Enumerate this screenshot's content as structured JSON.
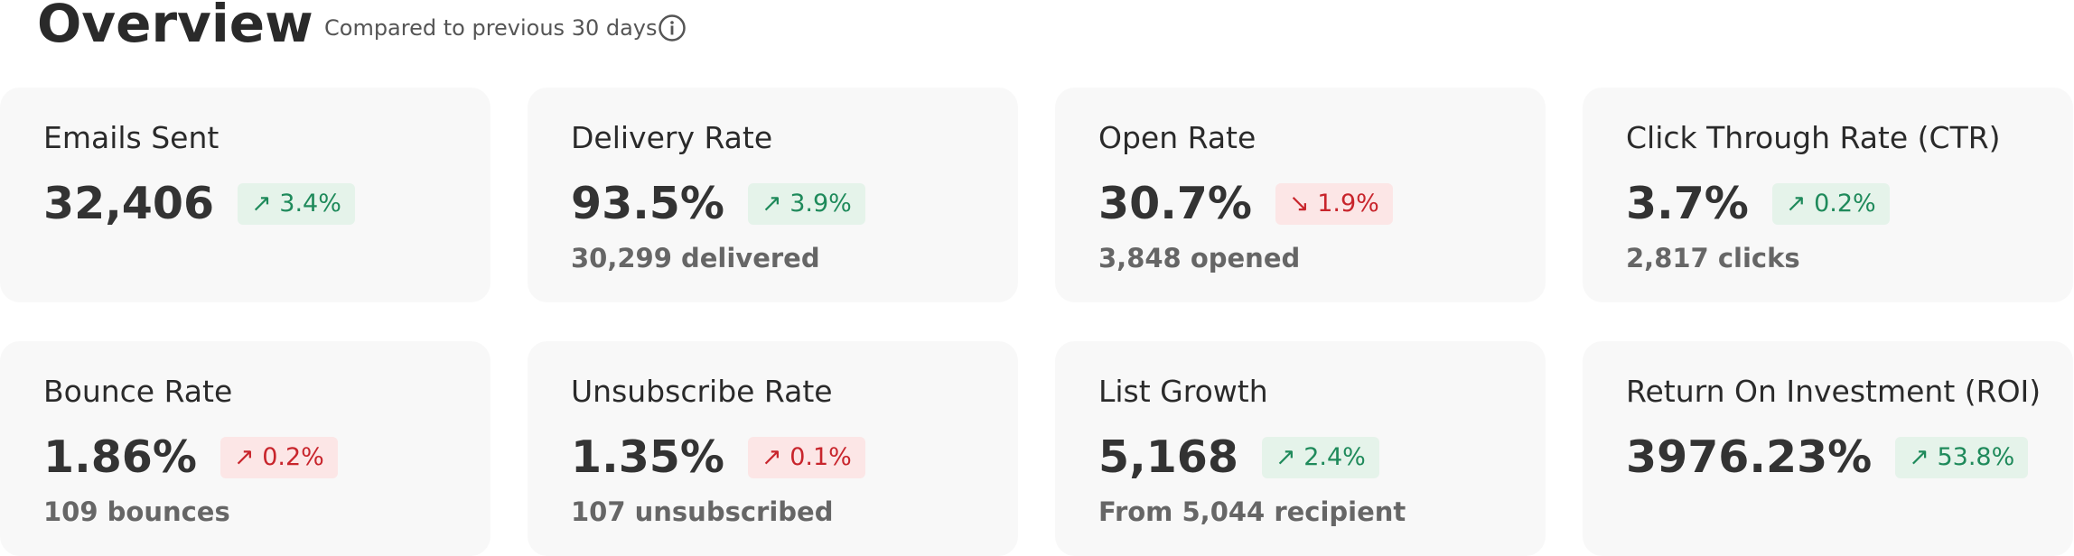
{
  "header": {
    "title": "Overview",
    "subtitle": "Compared to previous 30 days"
  },
  "cards": [
    {
      "title": "Emails Sent",
      "value": "32,406",
      "change": "↗ 3.4%",
      "color": "#1f8a5b",
      "background": "#e5f3ea"
    },
    {
      "title": "Delivery Rate",
      "value": "93.5%",
      "change": "↗ 3.9%",
      "color": "#1f8a5b",
      "background": "#e5f3ea",
      "detail": "30,299 delivered"
    },
    {
      "title": "Open Rate",
      "value": "30.7%",
      "change": "↘ 1.9%",
      "color": "#c8252c",
      "background": "#fce6e6",
      "detail": "3,848 opened"
    },
    {
      "title": "Click Through Rate (CTR)",
      "value": "3.7%",
      "change": "↗ 0.2%",
      "color": "#1f8a5b",
      "background": "#e5f3ea",
      "detail": "2,817 clicks"
    },
    {
      "title": "Bounce Rate",
      "value": "1.86%",
      "change": "↗ 0.2%",
      "color": "#c8252c",
      "background": "#fce6e6",
      "detail": "109 bounces"
    },
    {
      "title": "Unsubscribe Rate",
      "value": "1.35%",
      "change": "↗ 0.1%",
      "color": "#c8252c",
      "background": "#fce6e6",
      "detail": "107 unsubscribed"
    },
    {
      "title": "List Growth",
      "value": "5,168",
      "change": "↗ 2.4%",
      "color": "#1f8a5b",
      "background": "#e5f3ea",
      "detail": "From 5,044 recipient"
    },
    {
      "title": "Return On Investment (ROI)",
      "value": "3976.23%",
      "change": "↗ 53.8%",
      "color": "#1f8a5b",
      "background": "#e5f3ea"
    }
  ]
}
